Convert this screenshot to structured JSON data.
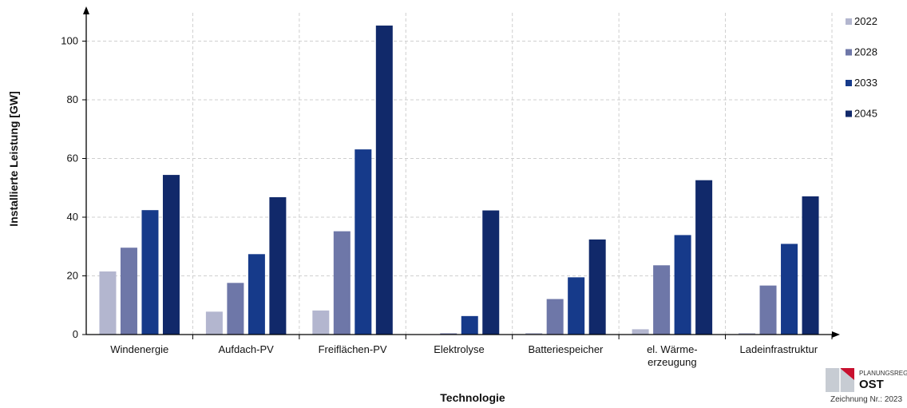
{
  "chart_data": {
    "type": "bar",
    "title": "",
    "xlabel": "Technologie",
    "ylabel": "Installierte Leistung [GW]",
    "ylim": [
      0,
      110
    ],
    "yticks": [
      0,
      20,
      40,
      60,
      80,
      100
    ],
    "grid": true,
    "legend_position": "top-right",
    "categories": [
      [
        "Windenergie"
      ],
      [
        "Aufdach-PV"
      ],
      [
        "Freiflächen-PV"
      ],
      [
        "Elektrolyse"
      ],
      [
        "Batteriespeicher"
      ],
      [
        "el. Wärme-",
        "erzeugung"
      ],
      [
        "Ladeinfrastruktur"
      ]
    ],
    "series": [
      {
        "name": "2022",
        "color": "#b3b6cf",
        "values": [
          21.5,
          7.8,
          8.2,
          0,
          0.5,
          1.8,
          0.5
        ]
      },
      {
        "name": "2028",
        "color": "#6e77a8",
        "values": [
          29.6,
          17.6,
          35.2,
          0.4,
          12.1,
          23.6,
          16.7
        ]
      },
      {
        "name": "2033",
        "color": "#163a8a",
        "values": [
          42.4,
          27.4,
          63.1,
          6.3,
          19.5,
          33.9,
          30.9
        ]
      },
      {
        "name": "2045",
        "color": "#11296a",
        "values": [
          54.4,
          46.8,
          105.3,
          42.3,
          32.4,
          52.6,
          47.1
        ]
      }
    ]
  },
  "logo": {
    "name": "PLANUNGSREGION",
    "region": "OST",
    "note": "Zeichnung Nr.: 2023"
  }
}
